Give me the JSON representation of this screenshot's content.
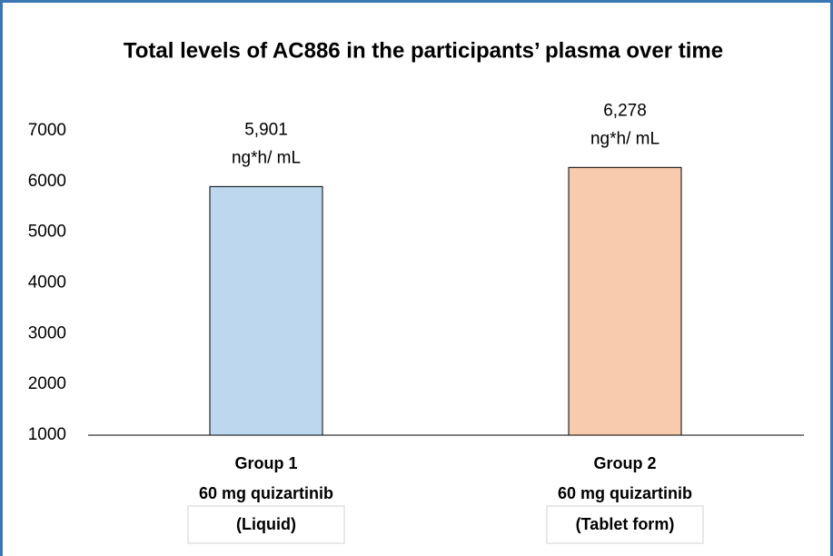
{
  "chart_data": {
    "type": "bar",
    "title": "Total levels of AC886 in the participants’ plasma over time",
    "categories": [
      "Group 1",
      "Group 2"
    ],
    "category_sublabels": [
      "60 mg quizartinib",
      "60 mg quizartinib"
    ],
    "category_notes": [
      "(Liquid)",
      "(Tablet form)"
    ],
    "values": [
      5901,
      6278
    ],
    "value_labels": [
      "5,901",
      "6,278"
    ],
    "value_unit": "ng*h/ mL",
    "colors": [
      "#bdd7ee",
      "#f8cbad"
    ],
    "ylim": [
      1000,
      7000
    ],
    "yticks": [
      1000,
      2000,
      3000,
      4000,
      5000,
      6000,
      7000
    ],
    "grid": false
  }
}
